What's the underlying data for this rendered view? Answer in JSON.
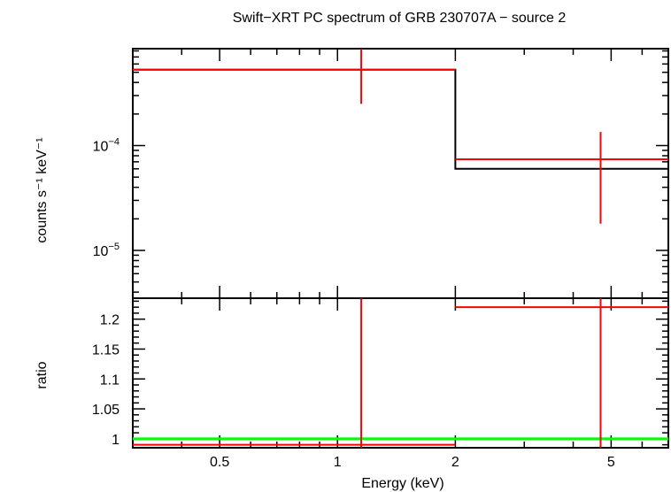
{
  "chart_data": {
    "title": "Swift−XRT PC spectrum of GRB 230707A − source 2",
    "xlabel": "Energy (keV)",
    "xscale": "log",
    "xlim": [
      0.3,
      7.0
    ],
    "x_ticks": [
      {
        "value": 0.5,
        "label": "0.5"
      },
      {
        "value": 1,
        "label": "1"
      },
      {
        "value": 2,
        "label": "2"
      },
      {
        "value": 5,
        "label": "5"
      }
    ],
    "colors": {
      "data": "#ff0000",
      "model": "#000000",
      "unity": "#00ff00"
    },
    "panels": [
      {
        "type": "line",
        "ylabel": "counts s⁻¹ keV⁻¹",
        "yscale": "log",
        "ylim": [
          3.5e-06,
          0.00084
        ],
        "y_ticks": [
          {
            "value": 1e-05,
            "base": "10",
            "exp": "−5"
          },
          {
            "value": 0.0001,
            "base": "10",
            "exp": "−4"
          }
        ],
        "data_points": [
          {
            "x_lo": 0.3,
            "x_hi": 2.0,
            "x": 1.15,
            "y": 0.00053,
            "y_lo": 0.00025,
            "y_hi": 0.00084
          },
          {
            "x_lo": 2.0,
            "x_hi": 7.0,
            "x": 4.7,
            "y": 7.4e-05,
            "y_lo": 1.8e-05,
            "y_hi": 0.000135
          }
        ],
        "model": [
          {
            "x_lo": 0.3,
            "x_hi": 2.0,
            "y": 0.00053
          },
          {
            "x_lo": 2.0,
            "x_hi": 7.0,
            "y": 6e-05
          }
        ]
      },
      {
        "type": "line",
        "ylabel": "ratio",
        "yscale": "linear",
        "ylim": [
          0.985,
          1.235
        ],
        "y_ticks": [
          {
            "value": 1,
            "label": "1"
          },
          {
            "value": 1.05,
            "label": "1.05"
          },
          {
            "value": 1.1,
            "label": "1.1"
          },
          {
            "value": 1.15,
            "label": "1.15"
          },
          {
            "value": 1.2,
            "label": "1.2"
          }
        ],
        "data_points": [
          {
            "x_lo": 0.3,
            "x_hi": 2.0,
            "x": 1.15,
            "y": 0.99
          },
          {
            "x_lo": 2.0,
            "x_hi": 7.0,
            "x": 4.7,
            "y": 1.22
          }
        ],
        "reference_line": 1.0
      }
    ]
  }
}
